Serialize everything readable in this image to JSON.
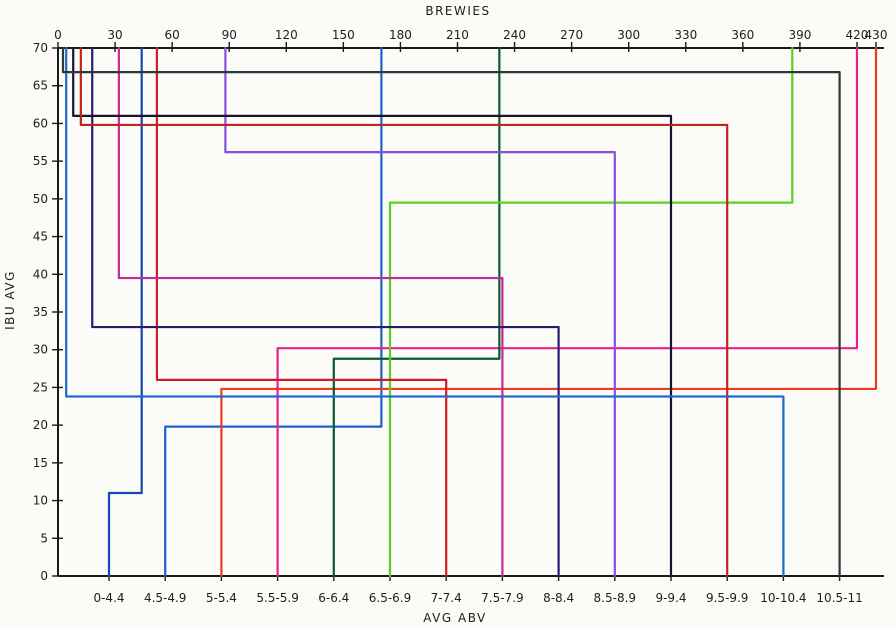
{
  "chart_data": {
    "type": "line",
    "title": "",
    "top_axis": {
      "label": "BREWIES",
      "ticks": [
        0,
        30,
        60,
        90,
        120,
        150,
        180,
        210,
        240,
        270,
        300,
        330,
        360,
        390,
        420,
        430
      ],
      "range": [
        0,
        430
      ]
    },
    "left_axis": {
      "label": "IBU AVG",
      "ticks": [
        0,
        5,
        10,
        15,
        20,
        25,
        30,
        35,
        40,
        45,
        50,
        55,
        60,
        65,
        70
      ],
      "range": [
        0,
        70
      ]
    },
    "bottom_axis": {
      "label": "AVG ABV",
      "categories": [
        "0-4.4",
        "4.5-4.9",
        "5-5.4",
        "5.5-5.9",
        "6-6.4",
        "6.5-6.9",
        "7-7.4",
        "7.5-7.9",
        "8-8.4",
        "8.5-8.9",
        "9-9.4",
        "9.5-9.9",
        "10-10.4",
        "10.5-11"
      ]
    },
    "grid": false,
    "series": [
      {
        "category": "0-4.4",
        "ibu": 11,
        "brewies": 44,
        "color": "#1846b0"
      },
      {
        "category": "4.5-4.9",
        "ibu": 19.8,
        "brewies": 170,
        "color": "#1c62c8"
      },
      {
        "category": "5-5.4",
        "ibu": 24.8,
        "brewies": 430,
        "color": "#ee3a22"
      },
      {
        "category": "5.5-5.9",
        "ibu": 30.2,
        "brewies": 420,
        "color": "#e8208a"
      },
      {
        "category": "6-6.4",
        "ibu": 28.8,
        "brewies": 232,
        "color": "#0c5a30"
      },
      {
        "category": "6.5-6.9",
        "ibu": 49.5,
        "brewies": 386,
        "color": "#5fd020"
      },
      {
        "category": "7-7.4",
        "ibu": 26,
        "brewies": 52,
        "color": "#cf1d24"
      },
      {
        "category": "7.5-7.9",
        "ibu": 39.5,
        "brewies": 32,
        "color": "#c32a9a"
      },
      {
        "category": "8-8.4",
        "ibu": 33,
        "brewies": 18,
        "color": "#2c1a72"
      },
      {
        "category": "8.5-8.9",
        "ibu": 56.2,
        "brewies": 88,
        "color": "#8a4de0"
      },
      {
        "category": "9-9.4",
        "ibu": 61,
        "brewies": 8,
        "color": "#151530"
      },
      {
        "category": "9.5-9.9",
        "ibu": 59.8,
        "brewies": 12,
        "color": "#c42418"
      },
      {
        "category": "10-10.4",
        "ibu": 23.8,
        "brewies": 4,
        "color": "#1e6ad0"
      },
      {
        "category": "10.5-11",
        "ibu": 66.8,
        "brewies": 2,
        "color": "#2a3a3a"
      }
    ]
  }
}
